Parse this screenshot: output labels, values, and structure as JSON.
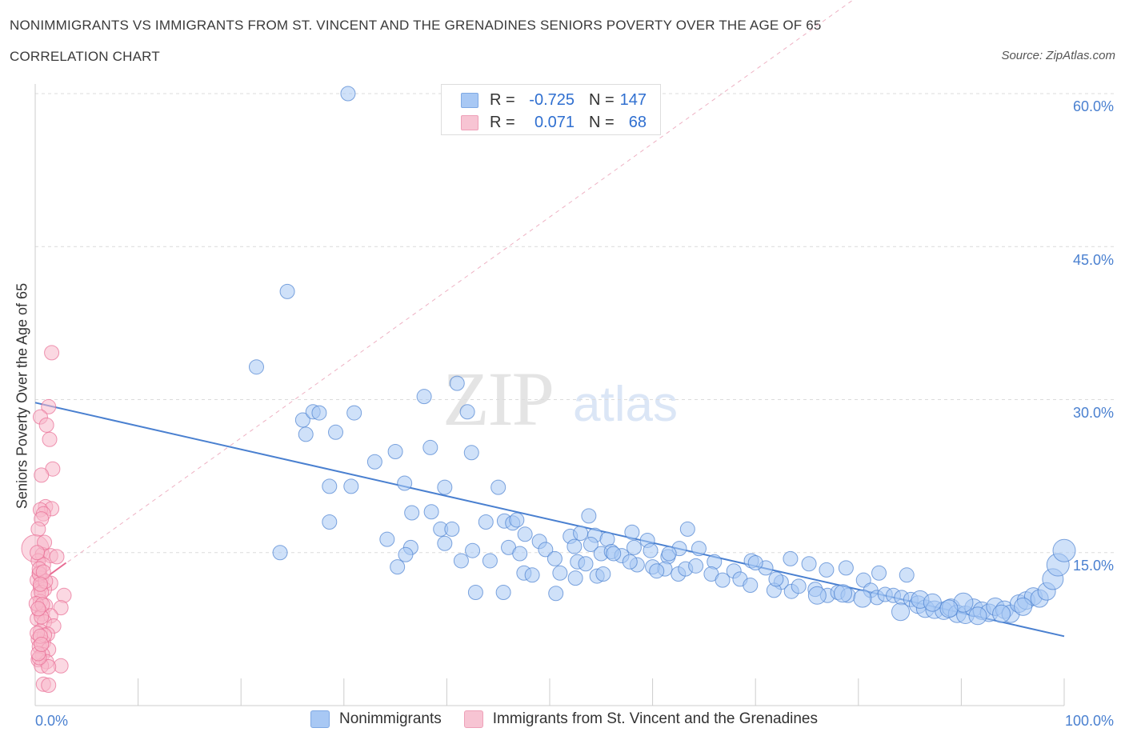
{
  "title": "NONIMMIGRANTS VS IMMIGRANTS FROM ST. VINCENT AND THE GRENADINES SENIORS POVERTY OVER THE AGE OF 65",
  "subtitle": "CORRELATION CHART",
  "source": "Source: ZipAtlas.com",
  "watermark": {
    "zip": "ZIP",
    "atlas": "atlas"
  },
  "legend_top": [
    {
      "label": "R =",
      "r": "-0.725",
      "n_label": "N =",
      "n": "147",
      "color": "#a8c8f4"
    },
    {
      "label": "R =",
      "r": "0.071",
      "n_label": "N =",
      "n": "68",
      "color": "#f7b8cb"
    }
  ],
  "legend_bottom": [
    {
      "label": "Nonimmigrants",
      "color": "#a8c8f4"
    },
    {
      "label": "Immigrants from St. Vincent and the Grenadines",
      "color": "#f7b8cb"
    }
  ],
  "y_ticks": [
    "60.0%",
    "45.0%",
    "30.0%",
    "15.0%"
  ],
  "x_ticks": [
    "0.0%",
    "100.0%"
  ],
  "ylabel": "Seniors Poverty Over the Age of 65",
  "chart_data": {
    "type": "scatter",
    "xlim": [
      0,
      100
    ],
    "ylim": [
      0,
      60
    ],
    "grid": true,
    "series": [
      {
        "name": "Nonimmigrants",
        "color": "#4a80d0",
        "fill": "#a8c8f4",
        "trend": {
          "x": [
            0,
            100
          ],
          "y": [
            29.7,
            6.8
          ]
        },
        "points": [
          [
            30.4,
            60.0
          ],
          [
            24.5,
            40.6
          ],
          [
            21.5,
            33.2
          ],
          [
            37.8,
            30.3
          ],
          [
            41.0,
            31.6
          ],
          [
            26.0,
            28.0
          ],
          [
            27.0,
            28.8
          ],
          [
            27.6,
            28.7
          ],
          [
            29.2,
            26.8
          ],
          [
            31.0,
            28.7
          ],
          [
            26.3,
            26.6
          ],
          [
            42.0,
            28.8
          ],
          [
            33.0,
            23.9
          ],
          [
            35.0,
            24.9
          ],
          [
            38.4,
            25.3
          ],
          [
            42.4,
            24.8
          ],
          [
            28.6,
            21.5
          ],
          [
            30.7,
            21.5
          ],
          [
            35.9,
            21.8
          ],
          [
            39.8,
            21.4
          ],
          [
            45.0,
            21.4
          ],
          [
            28.6,
            18.0
          ],
          [
            36.6,
            18.9
          ],
          [
            38.5,
            19.0
          ],
          [
            34.2,
            16.3
          ],
          [
            36.5,
            15.5
          ],
          [
            39.4,
            17.3
          ],
          [
            40.5,
            17.3
          ],
          [
            39.8,
            15.9
          ],
          [
            45.6,
            18.1
          ],
          [
            43.8,
            18.0
          ],
          [
            46.4,
            17.9
          ],
          [
            46.8,
            18.2
          ],
          [
            47.6,
            16.8
          ],
          [
            49.0,
            16.1
          ],
          [
            52.0,
            16.6
          ],
          [
            53.8,
            18.6
          ],
          [
            53.0,
            16.9
          ],
          [
            54.4,
            16.7
          ],
          [
            55.6,
            16.3
          ],
          [
            58.0,
            17.0
          ],
          [
            59.5,
            16.2
          ],
          [
            63.4,
            17.3
          ],
          [
            46.0,
            15.5
          ],
          [
            47.1,
            14.9
          ],
          [
            49.6,
            15.3
          ],
          [
            52.4,
            15.6
          ],
          [
            54.0,
            15.8
          ],
          [
            55.0,
            14.9
          ],
          [
            56.0,
            15.1
          ],
          [
            58.2,
            15.5
          ],
          [
            59.8,
            15.2
          ],
          [
            61.5,
            14.6
          ],
          [
            62.6,
            15.4
          ],
          [
            64.5,
            15.4
          ],
          [
            66.0,
            14.1
          ],
          [
            69.6,
            14.2
          ],
          [
            71.0,
            13.5
          ],
          [
            73.4,
            14.4
          ],
          [
            75.2,
            13.9
          ],
          [
            76.9,
            13.3
          ],
          [
            78.8,
            13.5
          ],
          [
            80.5,
            12.3
          ],
          [
            82.0,
            13.0
          ],
          [
            84.7,
            12.8
          ],
          [
            23.8,
            15.0
          ],
          [
            36.0,
            14.8
          ],
          [
            35.2,
            13.6
          ],
          [
            41.4,
            14.2
          ],
          [
            42.5,
            15.2
          ],
          [
            44.2,
            14.2
          ],
          [
            50.5,
            14.4
          ],
          [
            52.7,
            14.1
          ],
          [
            47.5,
            13.0
          ],
          [
            48.3,
            12.8
          ],
          [
            57.0,
            14.7
          ],
          [
            60.0,
            13.6
          ],
          [
            61.2,
            13.4
          ],
          [
            62.5,
            12.9
          ],
          [
            65.7,
            12.9
          ],
          [
            67.9,
            13.2
          ],
          [
            68.5,
            12.4
          ],
          [
            69.5,
            11.8
          ],
          [
            72.5,
            12.1
          ],
          [
            73.5,
            11.2
          ],
          [
            74.2,
            11.7
          ],
          [
            75.8,
            11.4
          ],
          [
            77.0,
            10.8
          ],
          [
            78.0,
            11.1
          ],
          [
            79.0,
            10.8
          ],
          [
            81.2,
            11.3
          ],
          [
            81.8,
            10.6
          ],
          [
            82.6,
            10.9
          ],
          [
            83.4,
            10.8
          ],
          [
            84.2,
            10.6
          ],
          [
            85.1,
            10.4
          ],
          [
            85.8,
            9.9
          ],
          [
            86.5,
            9.5
          ],
          [
            87.4,
            9.4
          ],
          [
            88.3,
            9.3
          ],
          [
            89.0,
            9.6
          ],
          [
            89.6,
            9.0
          ],
          [
            90.4,
            8.9
          ],
          [
            91.2,
            9.6
          ],
          [
            92.0,
            9.3
          ],
          [
            92.7,
            9.1
          ],
          [
            93.3,
            9.7
          ],
          [
            94.2,
            9.4
          ],
          [
            94.8,
            9.0
          ],
          [
            95.6,
            10.0
          ],
          [
            96.3,
            10.3
          ],
          [
            97.0,
            10.7
          ],
          [
            97.6,
            10.5
          ],
          [
            98.3,
            11.2
          ],
          [
            98.9,
            12.4
          ],
          [
            99.4,
            13.8
          ],
          [
            100.0,
            15.2
          ],
          [
            90.2,
            10.1
          ],
          [
            91.6,
            8.8
          ],
          [
            93.9,
            9.0
          ],
          [
            96.0,
            9.7
          ],
          [
            84.1,
            9.2
          ],
          [
            80.4,
            10.5
          ],
          [
            86.0,
            10.4
          ],
          [
            87.2,
            10.1
          ],
          [
            88.8,
            9.5
          ],
          [
            78.5,
            11.0
          ],
          [
            76.0,
            10.8
          ],
          [
            66.8,
            12.3
          ],
          [
            71.8,
            11.3
          ],
          [
            60.4,
            13.2
          ],
          [
            63.2,
            13.4
          ],
          [
            58.5,
            13.8
          ],
          [
            56.2,
            14.9
          ],
          [
            54.6,
            12.7
          ],
          [
            51.0,
            13.0
          ],
          [
            52.5,
            12.5
          ],
          [
            42.8,
            11.1
          ],
          [
            45.5,
            11.1
          ],
          [
            50.6,
            11.0
          ],
          [
            53.5,
            13.9
          ],
          [
            55.2,
            12.9
          ],
          [
            57.8,
            14.1
          ],
          [
            61.6,
            14.9
          ],
          [
            64.2,
            13.7
          ],
          [
            70.0,
            14.0
          ],
          [
            72.0,
            12.4
          ]
        ],
        "sizes": [
          9,
          9,
          9,
          9,
          9,
          9,
          9,
          9,
          9,
          9,
          9,
          9,
          9,
          9,
          9,
          9,
          9,
          9,
          9,
          9,
          9,
          9,
          9,
          9,
          9,
          9,
          9,
          9,
          9,
          9,
          9,
          9,
          9,
          9,
          9,
          9,
          9,
          9,
          9,
          9,
          9,
          9,
          9,
          9,
          9,
          9,
          9,
          9,
          9,
          9,
          9,
          9,
          9,
          9,
          9,
          9,
          9,
          9,
          9,
          9,
          9,
          9,
          9,
          9,
          9,
          9,
          9,
          9,
          9,
          9,
          9,
          9,
          9,
          9,
          9,
          9,
          9,
          9,
          9,
          9,
          9,
          9,
          9,
          9,
          9,
          9,
          9,
          9,
          9,
          9,
          9,
          9,
          9,
          9,
          9,
          9,
          11,
          11,
          11,
          11,
          11,
          11,
          11,
          11,
          11,
          11,
          11,
          11,
          11,
          11,
          11,
          11,
          11,
          11,
          13,
          14,
          14,
          12,
          11,
          11,
          11,
          11,
          11,
          11,
          11,
          11,
          11,
          11,
          9,
          9,
          9,
          9,
          9,
          9,
          9,
          9,
          9,
          9,
          9,
          9,
          9,
          9,
          9,
          9,
          9,
          9,
          9,
          12,
          9
        ]
      },
      {
        "name": "Immigrants from St. Vincent and the Grenadines",
        "color": "#e86b93",
        "fill": "#f7b8cb",
        "trend": {
          "x": [
            0.0,
            3.0
          ],
          "y": [
            11.8,
            14.0
          ]
        },
        "trend_extended": {
          "x": [
            0,
            100
          ],
          "y": [
            11.8,
            84.0
          ]
        },
        "points": [
          [
            1.6,
            34.6
          ],
          [
            1.3,
            29.3
          ],
          [
            0.5,
            28.3
          ],
          [
            1.1,
            27.5
          ],
          [
            1.4,
            26.1
          ],
          [
            1.7,
            23.2
          ],
          [
            0.6,
            22.6
          ],
          [
            1.0,
            19.5
          ],
          [
            1.6,
            19.3
          ],
          [
            0.5,
            19.2
          ],
          [
            0.8,
            18.8
          ],
          [
            0.6,
            18.3
          ],
          [
            0.3,
            17.3
          ],
          [
            0.0,
            15.4
          ],
          [
            0.7,
            14.8
          ],
          [
            1.5,
            14.7
          ],
          [
            2.1,
            14.6
          ],
          [
            0.3,
            14.2
          ],
          [
            0.8,
            13.8
          ],
          [
            0.4,
            13.0
          ],
          [
            0.6,
            12.5
          ],
          [
            0.2,
            12.3
          ],
          [
            1.5,
            12.0
          ],
          [
            0.5,
            11.6
          ],
          [
            0.9,
            11.4
          ],
          [
            0.3,
            10.9
          ],
          [
            2.8,
            10.8
          ],
          [
            0.5,
            10.2
          ],
          [
            1.0,
            9.8
          ],
          [
            2.5,
            9.6
          ],
          [
            0.4,
            9.3
          ],
          [
            0.7,
            9.0
          ],
          [
            1.5,
            8.8
          ],
          [
            0.2,
            8.5
          ],
          [
            0.9,
            8.2
          ],
          [
            1.8,
            7.8
          ],
          [
            0.5,
            7.3
          ],
          [
            1.2,
            7.0
          ],
          [
            0.3,
            6.5
          ],
          [
            0.8,
            6.2
          ],
          [
            0.4,
            5.8
          ],
          [
            1.3,
            5.5
          ],
          [
            0.7,
            5.0
          ],
          [
            0.3,
            4.5
          ],
          [
            1.1,
            4.3
          ],
          [
            0.6,
            3.9
          ],
          [
            2.5,
            3.9
          ],
          [
            1.3,
            3.8
          ],
          [
            0.8,
            2.1
          ],
          [
            1.3,
            2.0
          ],
          [
            0.4,
            12.9
          ],
          [
            0.6,
            11.1
          ],
          [
            0.1,
            10.0
          ],
          [
            0.9,
            6.9
          ],
          [
            0.4,
            4.7
          ],
          [
            0.2,
            7.1
          ],
          [
            0.6,
            8.7
          ],
          [
            1.0,
            12.2
          ],
          [
            0.5,
            6.8
          ],
          [
            0.3,
            5.1
          ],
          [
            0.7,
            9.9
          ],
          [
            0.4,
            13.4
          ],
          [
            0.9,
            16.0
          ],
          [
            0.2,
            15.0
          ],
          [
            0.8,
            13.1
          ],
          [
            0.5,
            11.9
          ],
          [
            0.3,
            9.5
          ],
          [
            0.6,
            6.0
          ]
        ],
        "sizes": [
          9,
          9,
          9,
          9,
          9,
          9,
          9,
          9,
          9,
          9,
          9,
          9,
          9,
          17,
          9,
          9,
          9,
          9,
          9,
          9,
          9,
          9,
          9,
          9,
          9,
          9,
          9,
          9,
          9,
          9,
          9,
          9,
          9,
          9,
          9,
          9,
          9,
          9,
          9,
          9,
          9,
          9,
          9,
          9,
          9,
          9,
          9,
          9,
          9,
          9,
          9,
          9,
          9,
          9,
          9,
          9,
          9,
          9,
          9,
          9,
          9,
          9,
          9,
          9,
          9,
          9,
          9,
          9
        ]
      }
    ]
  }
}
